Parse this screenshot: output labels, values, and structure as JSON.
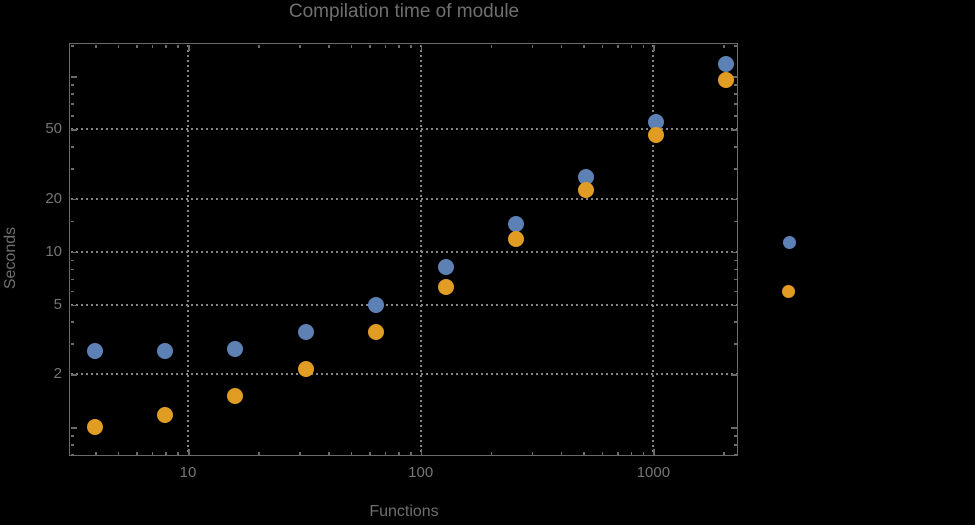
{
  "title": "Compilation time of module",
  "colors": {
    "background": "#000000",
    "frame": "#6a6a6a",
    "grid": "#868686",
    "text": "#6f6f6f",
    "series1": "#5e81b5",
    "series2": "#e19c24"
  },
  "chart_data": {
    "type": "scatter",
    "title": "Compilation time of module",
    "xlabel": "Functions",
    "ylabel": "Seconds",
    "xscale": "log",
    "yscale": "log",
    "xlim": [
      3.1,
      2320
    ],
    "ylim": [
      0.68,
      155
    ],
    "grid": "dotted, at major ticks only",
    "legend_position": "outside-right (markers only, no visible label text)",
    "x_axis": {
      "ticks": [
        {
          "value": 10,
          "label": "10"
        },
        {
          "value": 100,
          "label": "100"
        },
        {
          "value": 1000,
          "label": "1000"
        }
      ],
      "minor_ticks": [
        4,
        5,
        6,
        7,
        8,
        9,
        20,
        30,
        40,
        50,
        60,
        70,
        80,
        90,
        200,
        300,
        400,
        500,
        600,
        700,
        800,
        900,
        2000
      ]
    },
    "y_axis": {
      "ticks": [
        {
          "value": 2,
          "label": "2"
        },
        {
          "value": 5,
          "label": "5"
        },
        {
          "value": 10,
          "label": "10"
        },
        {
          "value": 20,
          "label": "20"
        },
        {
          "value": 50,
          "label": "50"
        },
        {
          "value": 1,
          "label": ""
        },
        {
          "value": 100,
          "label": ""
        }
      ],
      "minor_ticks": [
        0.7,
        0.8,
        0.9,
        3,
        4,
        6,
        7,
        8,
        9,
        15,
        30,
        40,
        60,
        70,
        80,
        90,
        150
      ]
    },
    "x_gridlines": [
      10,
      100,
      1000
    ],
    "y_gridlines": [
      2,
      5,
      10,
      20,
      50
    ],
    "categories_x": [
      4,
      8,
      16,
      32,
      64,
      128,
      256,
      512,
      1024,
      2048
    ],
    "series": [
      {
        "name": "series-1-blue",
        "color": "#5e81b5",
        "x": [
          4,
          8,
          16,
          32,
          64,
          128,
          256,
          512,
          1024,
          2048
        ],
        "y": [
          2.7,
          2.7,
          2.8,
          3.5,
          5.0,
          8.2,
          14.3,
          26.7,
          55,
          117
        ]
      },
      {
        "name": "series-2-orange",
        "color": "#e19c24",
        "x": [
          4,
          8,
          16,
          32,
          64,
          128,
          256,
          512,
          1024,
          2048
        ],
        "y": [
          1.0,
          1.17,
          1.5,
          2.15,
          3.5,
          6.3,
          11.8,
          22.5,
          46,
          95
        ]
      }
    ],
    "legend_markers": [
      {
        "series": "series-1-blue",
        "color": "#5e81b5"
      },
      {
        "series": "series-2-orange",
        "color": "#e19c24"
      }
    ]
  }
}
